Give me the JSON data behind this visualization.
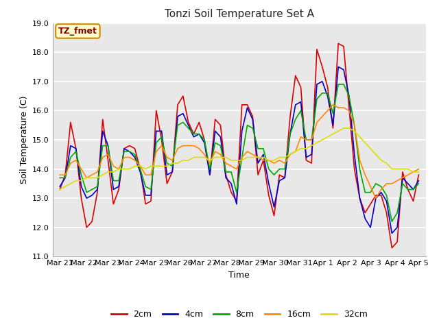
{
  "title": "Tonzi Soil Temperature Set A",
  "xlabel": "Time",
  "ylabel": "Soil Temperature (C)",
  "annotation": "TZ_fmet",
  "ylim": [
    11.0,
    19.0
  ],
  "yticks": [
    11.0,
    12.0,
    13.0,
    14.0,
    15.0,
    16.0,
    17.0,
    18.0,
    19.0
  ],
  "xtick_labels": [
    "Mar 21",
    "Mar 22",
    "Mar 23",
    "Mar 24",
    "Mar 25",
    "Mar 26",
    "Mar 27",
    "Mar 28",
    "Mar 29",
    "Mar 30",
    "Mar 31",
    "Apr 1",
    "Apr 2",
    "Apr 3",
    "Apr 4",
    "Apr 5"
  ],
  "colors": {
    "2cm": "#dd0000",
    "4cm": "#0000cc",
    "8cm": "#00aa00",
    "16cm": "#ff8800",
    "32cm": "#dddd00"
  },
  "background_color": "#ffffff",
  "plot_bg_color": "#e8e8e8",
  "series": {
    "2cm": [
      13.3,
      13.8,
      15.6,
      14.7,
      13.0,
      12.0,
      12.2,
      13.2,
      15.7,
      14.3,
      12.8,
      13.3,
      14.7,
      14.8,
      14.7,
      14.0,
      12.8,
      12.9,
      16.0,
      15.0,
      13.5,
      13.9,
      16.2,
      16.5,
      15.6,
      15.2,
      15.6,
      15.0,
      13.8,
      15.7,
      15.5,
      13.8,
      13.2,
      12.9,
      16.2,
      16.2,
      15.8,
      13.8,
      14.3,
      13.1,
      12.4,
      13.8,
      13.7,
      15.8,
      17.2,
      16.8,
      14.3,
      14.2,
      18.1,
      17.5,
      16.8,
      15.4,
      18.3,
      18.2,
      16.1,
      14.0,
      13.0,
      12.5,
      12.8,
      13.1,
      13.1,
      12.5,
      11.3,
      11.5,
      13.9,
      13.3,
      12.9,
      13.8
    ],
    "4cm": [
      13.4,
      13.7,
      14.8,
      14.7,
      13.4,
      13.0,
      13.1,
      13.3,
      15.3,
      14.8,
      13.3,
      13.4,
      14.7,
      14.6,
      14.4,
      13.9,
      13.1,
      13.1,
      15.3,
      15.3,
      13.8,
      13.9,
      15.8,
      15.9,
      15.5,
      15.1,
      15.2,
      14.9,
      13.8,
      15.3,
      15.1,
      13.7,
      13.5,
      12.8,
      15.3,
      16.1,
      15.7,
      14.2,
      14.5,
      13.5,
      12.7,
      13.6,
      13.7,
      15.2,
      16.2,
      16.3,
      14.4,
      14.5,
      16.9,
      17.0,
      16.5,
      15.5,
      17.5,
      17.4,
      16.5,
      14.5,
      13.0,
      12.3,
      12.0,
      13.0,
      13.2,
      12.9,
      11.8,
      12.0,
      13.7,
      13.5,
      13.3,
      13.6
    ],
    "8cm": [
      13.7,
      13.7,
      14.4,
      14.6,
      13.8,
      13.2,
      13.3,
      13.4,
      14.8,
      14.8,
      13.6,
      13.6,
      14.6,
      14.6,
      14.5,
      14.0,
      13.4,
      13.3,
      14.9,
      15.1,
      14.2,
      14.1,
      15.5,
      15.6,
      15.4,
      15.2,
      15.2,
      15.0,
      14.0,
      14.9,
      14.8,
      13.9,
      13.9,
      13.2,
      14.4,
      15.5,
      15.4,
      14.7,
      14.7,
      14.0,
      13.8,
      14.0,
      14.0,
      15.2,
      15.7,
      16.0,
      15.0,
      15.0,
      16.4,
      16.6,
      16.6,
      15.9,
      16.9,
      16.9,
      16.5,
      15.5,
      14.0,
      13.2,
      13.2,
      13.5,
      13.4,
      13.1,
      12.2,
      12.5,
      13.5,
      13.3,
      13.3,
      13.5
    ],
    "16cm": [
      13.8,
      13.8,
      14.2,
      14.3,
      14.0,
      13.7,
      13.8,
      13.9,
      14.4,
      14.5,
      14.1,
      14.0,
      14.4,
      14.4,
      14.3,
      14.1,
      13.8,
      13.8,
      14.6,
      14.8,
      14.4,
      14.3,
      14.7,
      14.8,
      14.8,
      14.8,
      14.7,
      14.5,
      14.2,
      14.6,
      14.5,
      14.2,
      14.1,
      14.0,
      14.4,
      14.6,
      14.5,
      14.4,
      14.3,
      14.3,
      14.2,
      14.3,
      14.2,
      14.5,
      14.6,
      15.1,
      15.0,
      15.0,
      15.6,
      15.8,
      16.0,
      16.2,
      16.1,
      16.1,
      16.0,
      15.5,
      14.3,
      13.8,
      13.4,
      13.0,
      13.3,
      13.5,
      13.5,
      13.6,
      13.7,
      13.8,
      13.9,
      14.0
    ],
    "32cm": [
      13.3,
      13.4,
      13.5,
      13.6,
      13.6,
      13.7,
      13.7,
      13.7,
      13.8,
      13.9,
      13.9,
      14.0,
      14.0,
      14.0,
      14.1,
      14.1,
      14.0,
      14.1,
      14.1,
      14.1,
      14.1,
      14.2,
      14.2,
      14.3,
      14.3,
      14.4,
      14.4,
      14.4,
      14.3,
      14.4,
      14.4,
      14.4,
      14.3,
      14.3,
      14.3,
      14.4,
      14.4,
      14.4,
      14.4,
      14.3,
      14.3,
      14.4,
      14.4,
      14.5,
      14.6,
      14.7,
      14.7,
      14.8,
      14.9,
      15.0,
      15.1,
      15.2,
      15.3,
      15.4,
      15.4,
      15.3,
      15.1,
      14.9,
      14.7,
      14.5,
      14.3,
      14.2,
      14.0,
      14.0,
      14.0,
      14.0,
      13.9,
      13.9
    ]
  }
}
